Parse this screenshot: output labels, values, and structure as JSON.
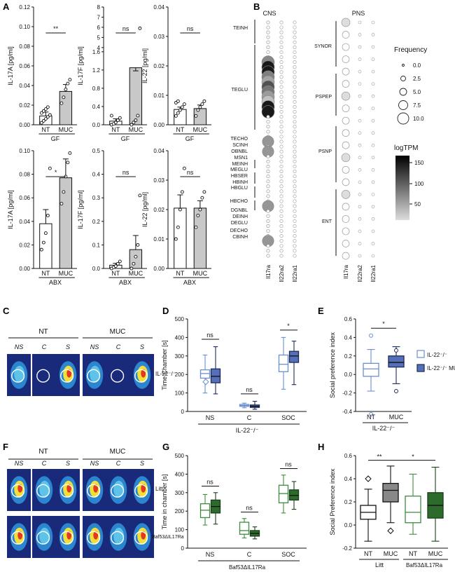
{
  "panel_letters": {
    "A": "A",
    "B": "B",
    "C": "C",
    "D": "D",
    "E": "E",
    "F": "F",
    "G": "G",
    "H": "H"
  },
  "chart_data": [
    {
      "panel": "A",
      "type": "bar",
      "ylabel": "IL-17A [pg/ml]",
      "xlabel": "GF",
      "categories": [
        "NT",
        "MUC"
      ],
      "values": [
        0.009,
        0.034
      ],
      "errors": [
        0.004,
        0.007
      ],
      "points": [
        [
          0.002,
          0.004,
          0.006,
          0.008,
          0.01,
          0.012,
          0.014,
          0.016,
          0.018
        ],
        [
          0.022,
          0.028,
          0.036,
          0.042,
          0.046
        ]
      ],
      "ylim": [
        0,
        0.12
      ],
      "yticks": [
        "0.00",
        "0.02",
        "0.04",
        "0.06",
        "0.08",
        "0.10",
        "0.12"
      ],
      "sig": "**"
    },
    {
      "panel": "A",
      "type": "bar",
      "ylabel": "IL-17F [pg/ml]",
      "xlabel": "GF",
      "categories": [
        "NT",
        "MUC"
      ],
      "values": [
        0.08,
        1.25
      ],
      "errors": [
        0.05,
        0.45
      ],
      "points": [
        [
          0.0,
          0.02,
          0.05,
          0.1,
          0.15,
          0.2
        ],
        [
          0.0,
          0.05,
          0.1,
          0.2,
          5.9
        ]
      ],
      "ylim": [
        0,
        8
      ],
      "axis_break": [
        1.6,
        4
      ],
      "yticks": [
        "0.0",
        "0.4",
        "0.8",
        "1.2",
        "1.6",
        "4",
        "5",
        "6",
        "7",
        "8"
      ],
      "sig": "ns"
    },
    {
      "panel": "A",
      "type": "bar",
      "ylabel": "IL-22 [pg/ml]",
      "xlabel": "GF",
      "categories": [
        "NT",
        "MUC"
      ],
      "values": [
        0.0052,
        0.0055
      ],
      "errors": [
        0.0008,
        0.0012
      ],
      "points": [
        [
          0.003,
          0.004,
          0.005,
          0.006,
          0.007,
          0.0075,
          0.008
        ],
        [
          0.003,
          0.005,
          0.006,
          0.007,
          0.008
        ]
      ],
      "ylim": [
        0,
        0.04
      ],
      "yticks": [
        "0.00",
        "0.01",
        "0.02",
        "0.03",
        "0.04"
      ],
      "sig": "ns"
    },
    {
      "panel": "A",
      "type": "bar",
      "ylabel": "IL-17A [pg/ml]",
      "xlabel": "ABX",
      "categories": [
        "NT",
        "MUC"
      ],
      "values": [
        0.038,
        0.077
      ],
      "errors": [
        0.012,
        0.016
      ],
      "points": [
        [
          0.016,
          0.022,
          0.03,
          0.045,
          0.085
        ],
        [
          0.055,
          0.065,
          0.078,
          0.09,
          0.098
        ]
      ],
      "ylim": [
        0,
        0.1
      ],
      "yticks": [
        "0.00",
        "0.02",
        "0.04",
        "0.06",
        "0.08",
        "0.10"
      ],
      "sig": "*"
    },
    {
      "panel": "A",
      "type": "bar",
      "ylabel": "IL-17F [pg/ml]",
      "xlabel": "ABX",
      "categories": [
        "NT",
        "MUC"
      ],
      "values": [
        0.014,
        0.08
      ],
      "errors": [
        0.008,
        0.06
      ],
      "points": [
        [
          0.0,
          0.005,
          0.01,
          0.02,
          0.03
        ],
        [
          0.0,
          0.02,
          0.05,
          0.1,
          0.31
        ]
      ],
      "ylim": [
        0,
        0.5
      ],
      "yticks": [
        "0.0",
        "0.1",
        "0.2",
        "0.3",
        "0.4",
        "0.5"
      ],
      "sig": "ns"
    },
    {
      "panel": "A",
      "type": "bar",
      "ylabel": "IL-22 [pg/ml]",
      "xlabel": "ABX",
      "categories": [
        "NT",
        "MUC"
      ],
      "values": [
        0.0205,
        0.0205
      ],
      "errors": [
        0.0045,
        0.0025
      ],
      "points": [
        [
          0.01,
          0.014,
          0.02,
          0.026,
          0.034
        ],
        [
          0.014,
          0.018,
          0.02,
          0.024,
          0.026
        ]
      ],
      "ylim": [
        0,
        0.04
      ],
      "yticks": [
        "0.00",
        "0.01",
        "0.02",
        "0.03",
        "0.04"
      ],
      "sig": "ns"
    },
    {
      "panel": "B",
      "type": "heatmap",
      "titles": [
        "CNS",
        "PNS"
      ],
      "columns": [
        "Il17ra",
        "Il22ra2",
        "Il22ra1"
      ],
      "cns_labels": [
        "TEINH",
        "TEGLU",
        "TECHO",
        "SCINH",
        "OBNBL",
        "MSN1",
        "MEINH",
        "MEGLU",
        "HBSER",
        "HBINH",
        "HBGLU",
        "HBCHO",
        "DGNBL",
        "DEINH",
        "DEGLU",
        "DECHO",
        "CBINH"
      ],
      "pns_labels": [
        "SYNOR",
        "PSPEP",
        "PSNP",
        "ENT"
      ],
      "legend_title": "Frequency",
      "legend_values": [
        "0.0",
        "2.5",
        "5.0",
        "7.5",
        "10.0"
      ],
      "colorbar_title": "logTPM",
      "colorbar_ticks": [
        "150",
        "100",
        "50"
      ]
    },
    {
      "panel": "D",
      "type": "box",
      "ylabel": "Time Chamber [s]",
      "xlabel": "IL-22⁻/⁻",
      "categories": [
        "NS",
        "C",
        "SOC"
      ],
      "ylim": [
        0,
        500
      ],
      "yticks": [
        "0",
        "100",
        "200",
        "300",
        "400",
        "500"
      ],
      "series": [
        {
          "name": "IL-22⁻/⁻",
          "boxes": [
            [
              100,
              180,
              205,
              225,
              305
            ],
            [
              20,
              28,
              32,
              38,
              45
            ],
            [
              120,
              215,
              255,
              305,
              400
            ]
          ]
        },
        {
          "name": "IL-22⁻/⁻ MUC",
          "boxes": [
            [
              95,
              155,
              190,
              230,
              350
            ],
            [
              12,
              22,
              28,
              35,
              55
            ],
            [
              145,
              265,
              300,
              325,
              380
            ]
          ]
        }
      ],
      "sig": [
        "ns",
        "ns",
        "*"
      ]
    },
    {
      "panel": "E",
      "type": "box",
      "ylabel": "Social preference index",
      "xlabel": "IL-22⁻/⁻",
      "categories": [
        "NT",
        "MUC"
      ],
      "ylim": [
        -0.4,
        0.6
      ],
      "yticks": [
        "-0.4",
        "-0.2",
        "0.0",
        "0.2",
        "0.4",
        "0.6"
      ],
      "boxes": [
        [
          -0.18,
          -0.02,
          0.06,
          0.12,
          0.27
        ],
        [
          -0.1,
          0.08,
          0.13,
          0.2,
          0.3
        ]
      ],
      "outliers": [
        [
          0.42,
          -0.43
        ],
        [
          0.26,
          -0.18
        ]
      ],
      "sig": "*",
      "legend": [
        "IL-22⁻/⁻",
        "IL-22⁻/⁻ MUC"
      ]
    },
    {
      "panel": "G",
      "type": "box",
      "ylabel": "Time in chamber [s]",
      "xlabel": "Baf53ΔIL17Ra",
      "categories": [
        "NS",
        "C",
        "SOC"
      ],
      "ylim": [
        0,
        500
      ],
      "yticks": [
        "0",
        "100",
        "200",
        "300",
        "400",
        "500"
      ],
      "series": [
        {
          "name": "Litt",
          "boxes": [
            [
              125,
              165,
              205,
              240,
              290
            ],
            [
              55,
              75,
              95,
              140,
              160
            ],
            [
              190,
              245,
              295,
              340,
              395
            ]
          ]
        },
        {
          "name": "Baf53ΔIL17Ra",
          "boxes": [
            [
              130,
              190,
              225,
              260,
              300
            ],
            [
              50,
              65,
              80,
              95,
              115
            ],
            [
              210,
              260,
              285,
              315,
              360
            ]
          ]
        }
      ],
      "sig": [
        "ns",
        "ns",
        "ns"
      ]
    },
    {
      "panel": "H",
      "type": "box",
      "ylabel": "Social Preference index",
      "categories": [
        "NT",
        "MUC",
        "NT",
        "MUC"
      ],
      "groups": [
        "Litt",
        "Baf53ΔIL17Ra"
      ],
      "ylim": [
        -0.2,
        0.6
      ],
      "yticks": [
        "-0.2",
        "0.0",
        "0.2",
        "0.4",
        "0.6"
      ],
      "boxes": [
        [
          -0.14,
          0.05,
          0.11,
          0.17,
          0.31
        ],
        [
          0.02,
          0.2,
          0.3,
          0.36,
          0.51
        ],
        [
          -0.08,
          0.02,
          0.11,
          0.25,
          0.44
        ],
        [
          -0.14,
          0.06,
          0.17,
          0.28,
          0.5
        ]
      ],
      "outliers": [
        [
          0.4
        ],
        [
          -0.05
        ],
        [],
        []
      ],
      "sig": [
        "**",
        "*"
      ]
    }
  ],
  "heatmap_labels": {
    "C_groups": [
      "NT",
      "MUC"
    ],
    "C_cells": [
      "NS",
      "C",
      "S",
      "NS",
      "C",
      "S"
    ],
    "C_genotype": "IL-22⁻/⁻",
    "F_groups": [
      "NT",
      "MUC"
    ],
    "F_cells": [
      "NS",
      "C",
      "S",
      "NS",
      "C",
      "S"
    ],
    "F_rows": [
      "Litt",
      "Baf53ΔIL17Ra"
    ]
  }
}
